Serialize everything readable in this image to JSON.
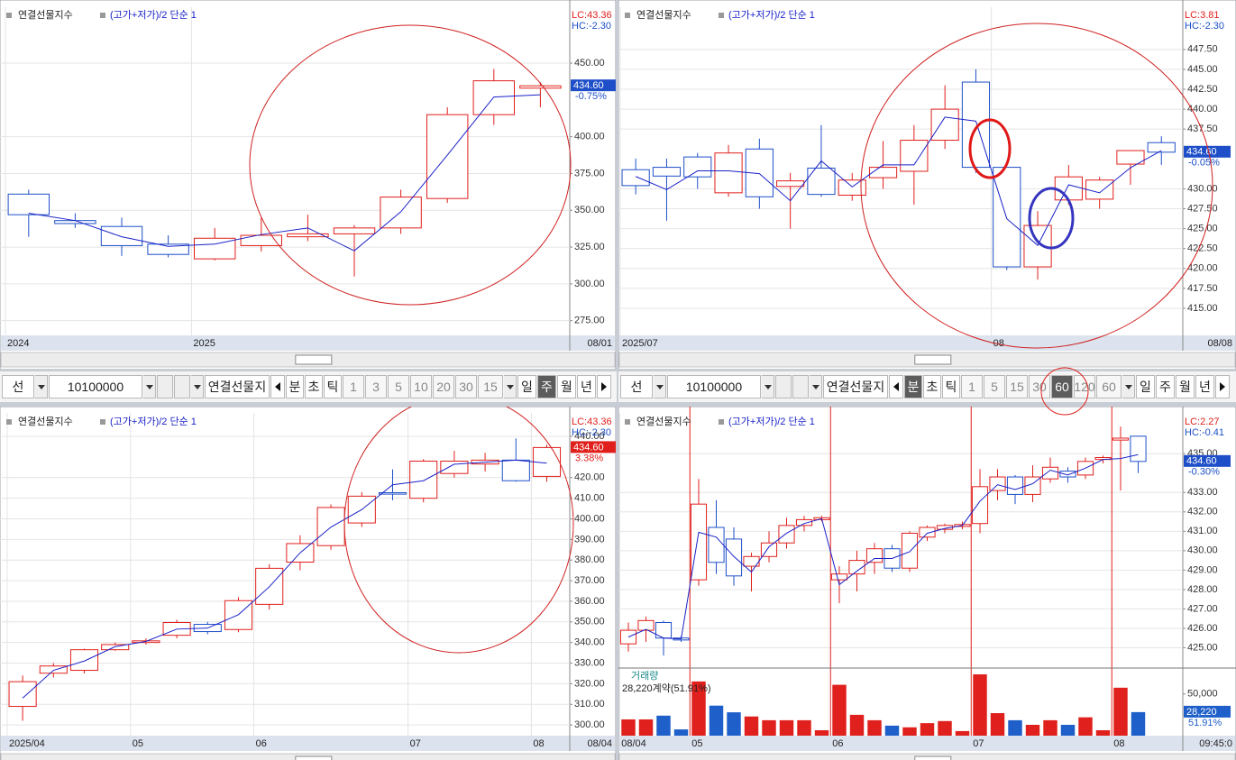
{
  "chart_data": [
    {
      "type": "candlestick",
      "title": "연결선물지수",
      "indicator": "(고가+저가)/2 단순 1",
      "info": [
        "LC:43.36",
        "HC:-2.30"
      ],
      "price_tag": "434.60",
      "change": "-0.75%",
      "tag_color": "#1e4fc8",
      "up_color": "#e0201c",
      "down_color": "#1e4fc8",
      "ma_color": "#1a22c8",
      "grid": true,
      "categories": [
        "2024",
        null,
        null,
        null,
        "2025",
        null,
        null,
        null,
        null,
        null,
        null,
        null
      ],
      "last_date": "08/01",
      "open": [
        361,
        343,
        339,
        327,
        317,
        326,
        332,
        334,
        338,
        358,
        415,
        433
      ],
      "high": [
        364,
        348,
        345,
        333,
        338,
        345,
        347,
        340,
        364,
        420,
        446,
        437
      ],
      "low": [
        332,
        338,
        319,
        318,
        316,
        322,
        329,
        305,
        334,
        355,
        408,
        420
      ],
      "close": [
        347,
        341,
        326,
        320,
        331,
        333,
        334,
        338,
        359,
        415,
        438,
        434.6
      ],
      "ma": [
        348,
        343,
        332,
        325.5,
        327,
        333.5,
        338,
        322.5,
        349,
        387.5,
        427,
        428.5
      ],
      "ylim": [
        265,
        488
      ],
      "yticks": [
        {
          "value": 450,
          "label": "450.00"
        },
        {
          "value": 400,
          "label": "400.00"
        },
        {
          "value": 375,
          "label": "375.00"
        },
        {
          "value": 350,
          "label": "350.00"
        },
        {
          "value": 325,
          "label": "325.00"
        },
        {
          "value": 300,
          "label": "300.00"
        },
        {
          "value": 275,
          "label": "275.00"
        }
      ]
    },
    {
      "type": "candlestick",
      "title": "연결선물지수",
      "indicator": "(고가+저가)/2 단순 1",
      "info": [
        "LC:3.81",
        "HC:-2.30"
      ],
      "price_tag": "434.60",
      "change": "-0.05%",
      "tag_color": "#1e4fc8",
      "up_color": "#e0201c",
      "down_color": "#1e4fc8",
      "ma_color": "#1a22c8",
      "grid": true,
      "categories": [
        "2025/07",
        null,
        null,
        null,
        null,
        null,
        null,
        null,
        null,
        null,
        null,
        null,
        "08",
        null,
        null,
        null,
        null,
        null
      ],
      "last_date": "08/08",
      "open": [
        432.4,
        432.7,
        434,
        429.5,
        435,
        430.3,
        432.6,
        429.2,
        431.4,
        432.2,
        436.1,
        443.4,
        432.7,
        420.2,
        428.6,
        428.7,
        433.1,
        435.8
      ],
      "high": [
        433.8,
        433.8,
        434.5,
        435.5,
        436.3,
        432,
        438,
        432,
        436,
        438,
        443,
        445,
        432.7,
        427.2,
        433,
        431.5,
        434.8,
        436.6
      ],
      "low": [
        429.3,
        426,
        430,
        429,
        427.5,
        425,
        429,
        428.5,
        430,
        428,
        435,
        432,
        419.8,
        418.6,
        428,
        427.5,
        430.5,
        433
      ],
      "close": [
        430.4,
        431.6,
        431.5,
        434.5,
        429,
        431,
        429.3,
        431.1,
        432.7,
        436.1,
        440,
        432.7,
        420.2,
        425.4,
        431.5,
        431.1,
        434.8,
        434.6
      ],
      "ma": [
        431.55,
        429.9,
        432.25,
        432.25,
        431.9,
        428.5,
        433.5,
        430.25,
        433,
        433,
        439,
        438.5,
        426.25,
        422.9,
        430.5,
        429.5,
        432.65,
        434.8
      ],
      "ylim": [
        411.6,
        452.8
      ],
      "yticks": [
        {
          "value": 447.5,
          "label": "447.50"
        },
        {
          "value": 445,
          "label": "445.00"
        },
        {
          "value": 442.5,
          "label": "442.50"
        },
        {
          "value": 440,
          "label": "440.00"
        },
        {
          "value": 437.5,
          "label": "437.50"
        },
        {
          "value": 430,
          "label": "430.00"
        },
        {
          "value": 427.5,
          "label": "427.50"
        },
        {
          "value": 425,
          "label": "425.00"
        },
        {
          "value": 422.5,
          "label": "422.50"
        },
        {
          "value": 420,
          "label": "420.00"
        },
        {
          "value": 417.5,
          "label": "417.50"
        },
        {
          "value": 415,
          "label": "415.00"
        }
      ]
    },
    {
      "type": "candlestick",
      "title": "연결선물지수",
      "indicator": "(고가+저가)/2 단순 1",
      "info": [
        "LC:43.36",
        "HC:-2.30"
      ],
      "price_tag": "434.60",
      "change": "3.38%",
      "tag_color": "#e0201c",
      "up_color": "#e0201c",
      "down_color": "#1e4fc8",
      "ma_color": "#1a22c8",
      "grid": true,
      "categories": [
        "2025/04",
        null,
        null,
        null,
        "05",
        null,
        null,
        null,
        "06",
        null,
        null,
        null,
        null,
        "07",
        null,
        null,
        null,
        "08"
      ],
      "last_date": "08/04",
      "open": [
        309,
        325.1,
        326.5,
        336.5,
        340,
        343.5,
        348.8,
        346.3,
        358.5,
        379,
        387,
        398,
        412.7,
        410,
        422,
        426.6,
        428.5,
        420.6
      ],
      "high": [
        324,
        330,
        337,
        340,
        342,
        351,
        350,
        362,
        378,
        392,
        407,
        413,
        424,
        429,
        433,
        432,
        439,
        436
      ],
      "low": [
        302,
        323,
        325,
        336,
        339,
        342,
        344,
        345,
        356,
        375,
        385,
        396,
        409,
        408,
        420,
        423,
        418,
        418
      ],
      "close": [
        321,
        328.6,
        336.5,
        339,
        340.8,
        349.7,
        345.3,
        360.3,
        376,
        388,
        405.5,
        411,
        412,
        428,
        428,
        428.5,
        418.5,
        434.6
      ],
      "ma": [
        313,
        326.5,
        331,
        338,
        340.5,
        346.5,
        347,
        353.5,
        367,
        383.5,
        396,
        404.5,
        416.5,
        418.5,
        426.5,
        427.5,
        428.5,
        427
      ],
      "ylim": [
        294.8,
        451.4
      ],
      "yticks": [
        {
          "value": 440,
          "label": "440.00"
        },
        {
          "value": 420,
          "label": "420.00"
        },
        {
          "value": 410,
          "label": "410.00"
        },
        {
          "value": 400,
          "label": "400.00"
        },
        {
          "value": 390,
          "label": "390.00"
        },
        {
          "value": 380,
          "label": "380.00"
        },
        {
          "value": 370,
          "label": "370.00"
        },
        {
          "value": 360,
          "label": "360.00"
        },
        {
          "value": 350,
          "label": "350.00"
        },
        {
          "value": 340,
          "label": "340.00"
        },
        {
          "value": 330,
          "label": "330.00"
        },
        {
          "value": 320,
          "label": "320.00"
        },
        {
          "value": 310,
          "label": "310.00"
        },
        {
          "value": 300,
          "label": "300.00"
        }
      ]
    },
    {
      "type": "candlestick",
      "title": "연결선물지수",
      "indicator": "(고가+저가)/2 단순 1",
      "info": [
        "LC:2.27",
        "HC:-0.41"
      ],
      "price_tag": "434.60",
      "change": "-0.30%",
      "tag_color": "#1e4fc8",
      "up_color": "#e0201c",
      "down_color": "#1e4fc8",
      "ma_color": "#1a22c8",
      "grid": true,
      "separators": "#e0201c",
      "categories": [
        "08/04",
        null,
        null,
        null,
        "05",
        null,
        null,
        null,
        null,
        null,
        null,
        null,
        "06",
        null,
        null,
        null,
        null,
        null,
        null,
        null,
        "07",
        null,
        null,
        null,
        null,
        null,
        null,
        null,
        "08",
        null
      ],
      "last_date": "09:45:0",
      "open": [
        425.2,
        425.9,
        426.3,
        425.5,
        428.5,
        431.2,
        430.6,
        429.2,
        429.7,
        430.4,
        431.3,
        431.6,
        428.5,
        428.8,
        429.4,
        430.1,
        429.1,
        430.7,
        431.1,
        431.25,
        431.4,
        433.1,
        433.8,
        432.9,
        433.7,
        434.1,
        433.9,
        434.7,
        435.7,
        435.9
      ],
      "high": [
        426.3,
        426.6,
        426.4,
        425.6,
        433.7,
        432.6,
        431.2,
        429.9,
        431,
        431.7,
        431.8,
        431.8,
        429.2,
        430,
        430.4,
        430.3,
        431,
        431.3,
        431.4,
        431.5,
        434.2,
        434.2,
        433.9,
        434.4,
        434.8,
        434.3,
        434.8,
        434.9,
        436.4,
        435.9
      ],
      "low": [
        424.8,
        425.3,
        424.6,
        425.3,
        428.2,
        428.8,
        428.2,
        427.9,
        429.4,
        430.1,
        431,
        431.5,
        427.3,
        427.9,
        428.8,
        428.9,
        428.9,
        430.5,
        430.9,
        431.1,
        430.9,
        432.6,
        432.4,
        432.5,
        433.5,
        433.5,
        433.7,
        434.5,
        433.1,
        434
      ],
      "close": [
        425.9,
        426.4,
        425.5,
        425.4,
        432.4,
        429.4,
        428.7,
        429.7,
        430.4,
        431.3,
        431.6,
        431.7,
        428.8,
        429.5,
        430.1,
        429.1,
        430.9,
        431.2,
        431.3,
        431.35,
        433.3,
        433.8,
        432.9,
        433.8,
        434.3,
        433.8,
        434.6,
        434.8,
        435.8,
        434.6
      ],
      "ma": [
        425.55,
        425.95,
        425.5,
        425.45,
        430.95,
        430.7,
        429.7,
        428.9,
        430.2,
        430.9,
        431.4,
        431.65,
        428.25,
        428.95,
        429.6,
        429.6,
        429.95,
        430.9,
        431.15,
        431.3,
        432.55,
        433.4,
        433.15,
        433.45,
        434.15,
        433.9,
        434.25,
        434.7,
        434.75,
        434.95
      ],
      "ylim": [
        424,
        437.1
      ],
      "yticks": [
        {
          "value": 435,
          "label": "435.00"
        },
        {
          "value": 433,
          "label": "433.00"
        },
        {
          "value": 432,
          "label": "432.00"
        },
        {
          "value": 431,
          "label": "431.00"
        },
        {
          "value": 430,
          "label": "430.00"
        },
        {
          "value": 429,
          "label": "429.00"
        },
        {
          "value": 428,
          "label": "428.00"
        },
        {
          "value": 427,
          "label": "427.00"
        },
        {
          "value": 426,
          "label": "426.00"
        },
        {
          "value": 425,
          "label": "425.00"
        }
      ],
      "volume": {
        "name": "거래량",
        "summary": "28,220계약(51.91%)",
        "price_tag": "28,220",
        "change": "51.91%",
        "color": "#1e5fc9",
        "values": [
          19500,
          19500,
          24000,
          7500,
          65000,
          36000,
          28000,
          23000,
          18500,
          18500,
          18500,
          6500,
          61000,
          25000,
          18500,
          12000,
          10000,
          15000,
          17500,
          5500,
          73500,
          27000,
          18500,
          13000,
          18500,
          13000,
          22000,
          6500,
          57500,
          28220
        ],
        "ylim": [
          0,
          80000
        ],
        "yticks": [
          {
            "value": 50000,
            "label": "50,000"
          }
        ]
      }
    }
  ],
  "toolbars": [
    {
      "market": "선",
      "code": "10100000",
      "name": "연결선물지",
      "units": [
        "분",
        "초",
        "틱"
      ],
      "periods": [
        "1",
        "3",
        "5",
        "10",
        "20",
        "30"
      ],
      "period_select": "15",
      "ranges": [
        "일",
        "주",
        "월",
        "년"
      ],
      "selected": [
        "주"
      ]
    },
    {
      "market": "선",
      "code": "10100000",
      "name": "연결선물지",
      "units": [
        "분",
        "초",
        "틱"
      ],
      "periods": [
        "1",
        "5",
        "15",
        "30",
        "60",
        "120"
      ],
      "period_select": "60",
      "ranges": [
        "일",
        "주",
        "월",
        "년"
      ],
      "selected": [
        "분",
        "60"
      ]
    }
  ]
}
